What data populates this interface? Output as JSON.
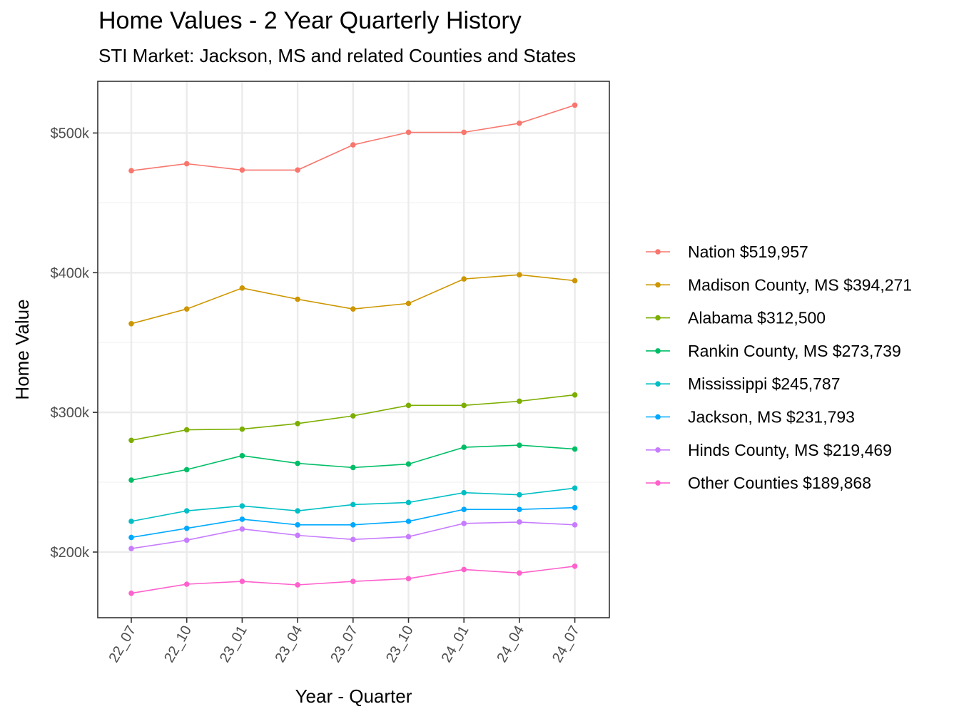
{
  "chart_data": {
    "type": "line",
    "title": "Home Values - 2 Year Quarterly History",
    "subtitle": "STI Market: Jackson, MS and related Counties and States",
    "xlabel": "Year - Quarter",
    "ylabel": "Home Value",
    "categories": [
      "22_07",
      "22_10",
      "23_01",
      "23_04",
      "23_07",
      "23_10",
      "24_01",
      "24_04",
      "24_07"
    ],
    "ylim": [
      153000,
      537000
    ],
    "yticks": [
      200000,
      300000,
      400000,
      500000
    ],
    "ytick_labels": [
      "$200k",
      "$300k",
      "$400k",
      "$500k"
    ],
    "grid": true,
    "legend_position": "right",
    "series": [
      {
        "name": "Nation $519,957",
        "color": "#F8766D",
        "values": [
          473000,
          478000,
          473500,
          473500,
          491500,
          500500,
          500500,
          507000,
          519957
        ]
      },
      {
        "name": "Madison County, MS $394,271",
        "color": "#CD9600",
        "values": [
          363500,
          374000,
          389000,
          381000,
          374000,
          378000,
          395500,
          398500,
          394271
        ]
      },
      {
        "name": "Alabama $312,500",
        "color": "#7CAE00",
        "values": [
          280000,
          287500,
          288000,
          292000,
          297500,
          305000,
          305000,
          308000,
          312500
        ]
      },
      {
        "name": "Rankin County, MS $273,739",
        "color": "#00BE67",
        "values": [
          251500,
          259000,
          269000,
          263500,
          260500,
          263000,
          275000,
          276500,
          273739
        ]
      },
      {
        "name": "Mississippi $245,787",
        "color": "#00BFC4",
        "values": [
          222000,
          229500,
          233000,
          229500,
          234000,
          235500,
          242500,
          241000,
          245787
        ]
      },
      {
        "name": "Jackson, MS $231,793",
        "color": "#00A9FF",
        "values": [
          210500,
          217000,
          223500,
          219500,
          219500,
          222000,
          230500,
          230500,
          231793
        ]
      },
      {
        "name": "Hinds County, MS $219,469",
        "color": "#C77CFF",
        "values": [
          202500,
          208500,
          216500,
          212000,
          209000,
          211000,
          220500,
          221500,
          219469
        ]
      },
      {
        "name": "Other Counties $189,868",
        "color": "#FF61CC",
        "values": [
          170500,
          177000,
          179000,
          176500,
          179000,
          181000,
          187500,
          185000,
          189868
        ]
      }
    ]
  }
}
